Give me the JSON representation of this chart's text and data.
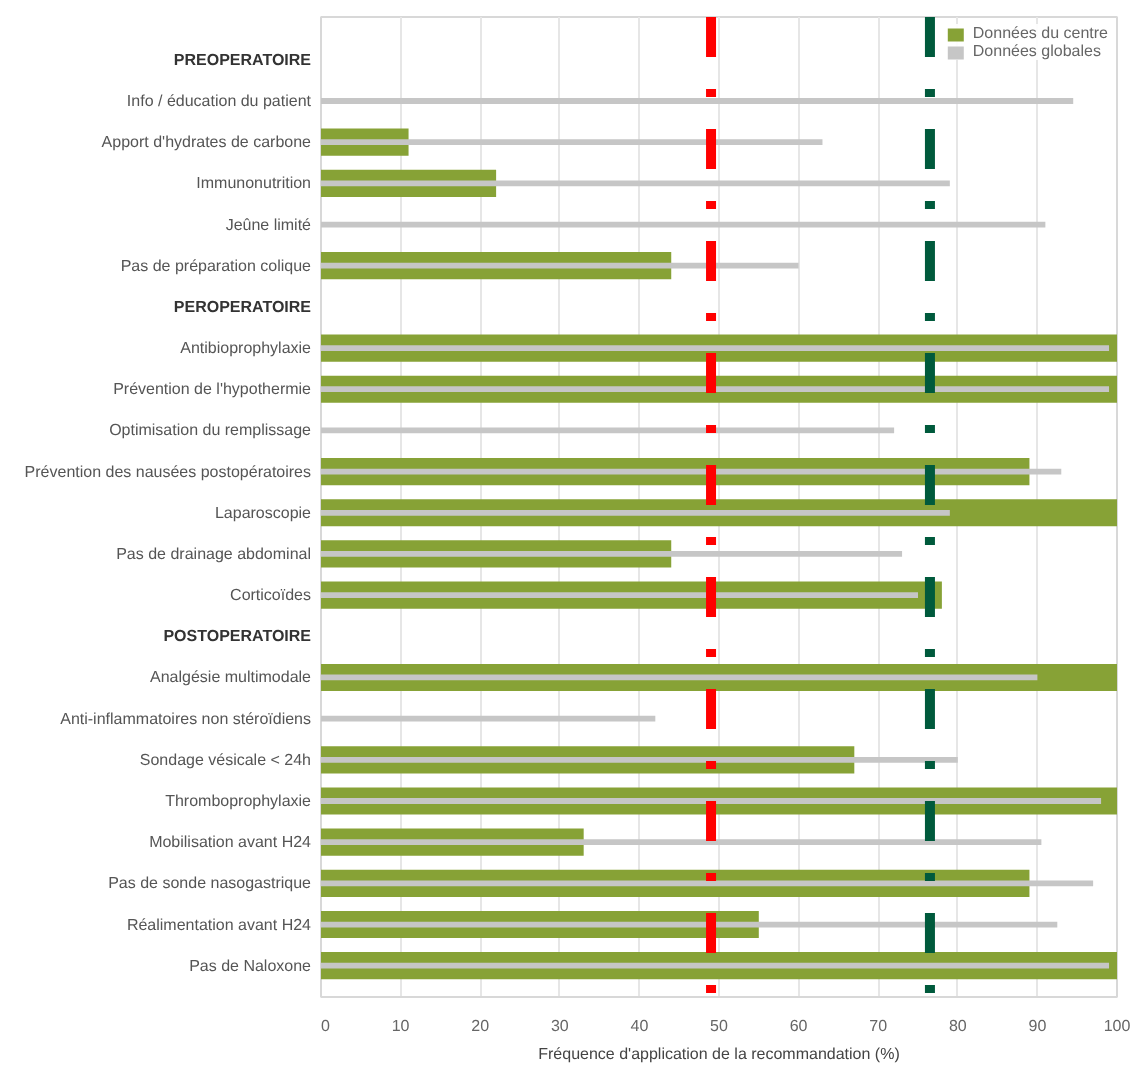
{
  "chart_data": {
    "type": "bar",
    "orientation": "horizontal",
    "xlabel": "Fréquence d'application de la recommandation (%)",
    "categories": [
      "PREOPERATOIRE",
      "Info / éducation du patient",
      "Apport d'hydrates de carbone",
      "Immunonutrition",
      "Jeûne limité",
      "Pas de préparation colique",
      "PEROPERATOIRE",
      "Antibioprophylaxie",
      "Prévention de l'hypothermie",
      "Optimisation du remplissage",
      "Prévention des nausées postopératoires",
      "Laparoscopie",
      "Pas de drainage abdominal",
      "Corticoïdes",
      "POSTOPERATOIRE",
      "Analgésie multimodale",
      "Anti-inflammatoires non stéroïdiens",
      "Sondage vésicale < 24h",
      "Thromboprophylaxie",
      "Mobilisation avant H24",
      "Pas de sonde nasogastrique",
      "Réalimentation avant H24",
      "Pas de Naloxone"
    ],
    "series": [
      {
        "name": "Données du centre",
        "color": "#87a236",
        "values": [
          null,
          0,
          11,
          22,
          0,
          44,
          null,
          100,
          100,
          0,
          89,
          100,
          44,
          78,
          null,
          100,
          0,
          67,
          100,
          33,
          89,
          55,
          100
        ]
      },
      {
        "name": "Données globales",
        "color": "#c6c6c6",
        "values": [
          null,
          94.5,
          63,
          79,
          91,
          60,
          null,
          99,
          99,
          72,
          93,
          79,
          73,
          75,
          null,
          90,
          42,
          80,
          98,
          90.5,
          97,
          92.5,
          99
        ]
      }
    ],
    "xlim": [
      0,
      100
    ],
    "xticks": [
      0,
      10,
      20,
      30,
      40,
      50,
      60,
      70,
      80,
      90,
      100
    ],
    "grid": "x",
    "legend": "top right",
    "ref_lines": [
      {
        "axis": "x",
        "value": 49,
        "color": "#ff0000",
        "line_style": "dashed"
      },
      {
        "axis": "x",
        "value": 76.5,
        "color": "#005a3c",
        "line_style": "dashed"
      }
    ]
  }
}
